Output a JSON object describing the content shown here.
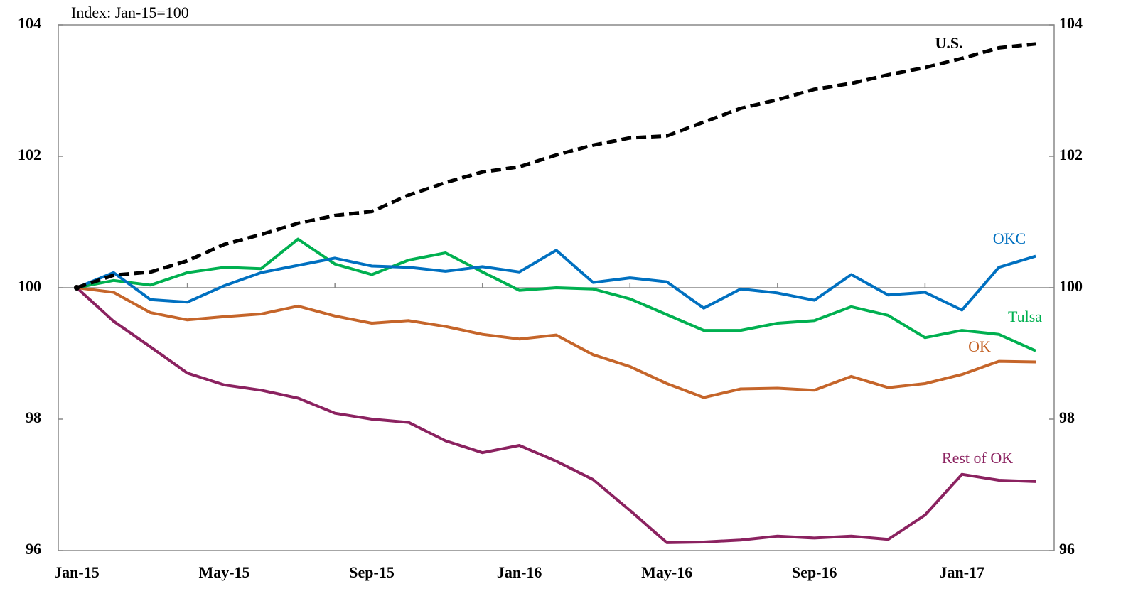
{
  "chart_data": {
    "type": "line",
    "y_axis_label": "Index: Jan-15=100",
    "categories": [
      "Jan-15",
      null,
      null,
      null,
      "May-15",
      null,
      null,
      null,
      "Sep-15",
      null,
      null,
      null,
      "Jan-16",
      null,
      null,
      null,
      "May-16",
      null,
      null,
      null,
      "Sep-16",
      null,
      null,
      null,
      "Jan-17",
      null,
      null
    ],
    "series": [
      {
        "name": "U.S.",
        "color": "#000000",
        "dashed": true,
        "values": [
          100,
          100.19,
          100.24,
          100.41,
          100.66,
          100.81,
          100.98,
          101.1,
          101.16,
          101.41,
          101.6,
          101.76,
          101.84,
          102.02,
          102.17,
          102.28,
          102.31,
          102.52,
          102.73,
          102.86,
          103.02,
          103.11,
          103.24,
          103.35,
          103.49,
          103.65,
          103.71
        ]
      },
      {
        "name": "OKC",
        "color": "#0070c0",
        "values": [
          100,
          100.23,
          99.82,
          99.78,
          100.03,
          100.23,
          100.34,
          100.45,
          100.33,
          100.31,
          100.25,
          100.32,
          100.24,
          100.57,
          100.08,
          100.15,
          100.09,
          99.69,
          99.98,
          99.92,
          99.81,
          100.2,
          99.89,
          99.93,
          99.66,
          100.31,
          100.48
        ]
      },
      {
        "name": "Tulsa",
        "color": "#00b050",
        "values": [
          100,
          100.11,
          100.04,
          100.23,
          100.31,
          100.29,
          100.74,
          100.36,
          100.2,
          100.42,
          100.53,
          100.24,
          99.96,
          100.0,
          99.98,
          99.83,
          99.59,
          99.35,
          99.35,
          99.46,
          99.5,
          99.71,
          99.58,
          99.24,
          99.35,
          99.29,
          99.04
        ]
      },
      {
        "name": "OK",
        "color": "#c5652a",
        "values": [
          100,
          99.93,
          99.62,
          99.51,
          99.56,
          99.6,
          99.72,
          99.57,
          99.46,
          99.5,
          99.41,
          99.29,
          99.22,
          99.28,
          98.98,
          98.8,
          98.54,
          98.33,
          98.46,
          98.47,
          98.44,
          98.65,
          98.48,
          98.54,
          98.68,
          98.88,
          98.87
        ]
      },
      {
        "name": "Rest of OK",
        "color": "#8b2260",
        "values": [
          100,
          99.49,
          99.1,
          98.7,
          98.52,
          98.44,
          98.32,
          98.09,
          98.0,
          97.95,
          97.67,
          97.49,
          97.6,
          97.36,
          97.08,
          96.61,
          96.12,
          96.13,
          96.16,
          96.22,
          96.19,
          96.22,
          96.17,
          96.54,
          97.16,
          97.07,
          97.05
        ]
      }
    ],
    "ylim": [
      96,
      104
    ],
    "yticks": [
      96,
      98,
      100,
      102,
      104
    ],
    "y2lim": [
      96,
      104
    ],
    "y2ticks": [
      96,
      98,
      100,
      102,
      104
    ],
    "x_axis_at": 100
  }
}
